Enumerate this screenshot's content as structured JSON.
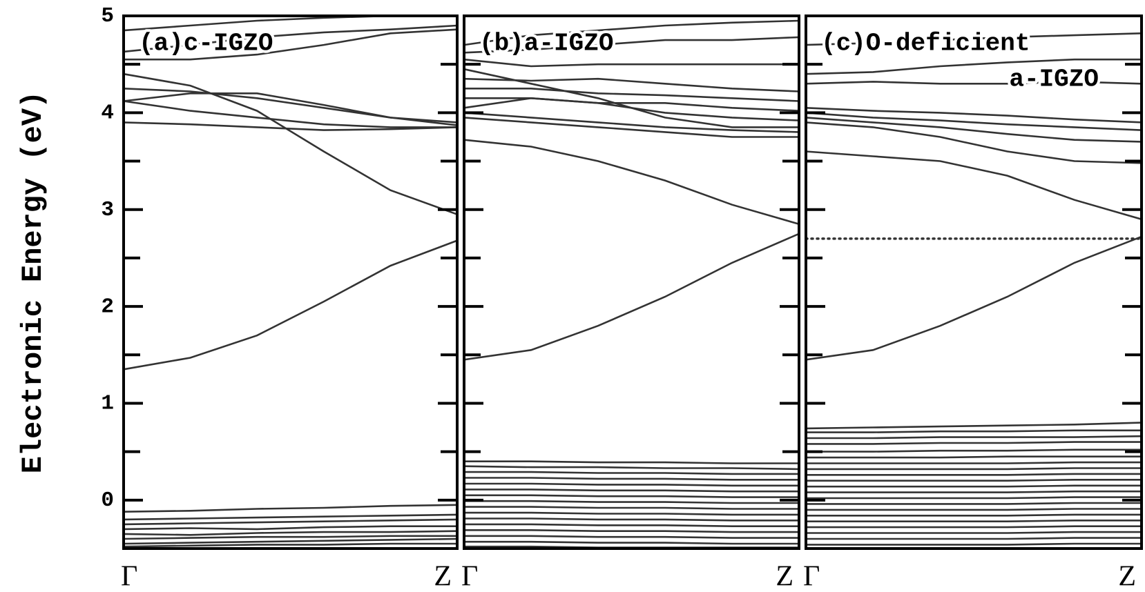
{
  "chart_data": [
    {
      "type": "line",
      "title": "(a)c-IGZO",
      "ylabel": "Electronic Energy (eV)",
      "categories": [
        "Γ",
        null,
        null,
        null,
        null,
        "Z"
      ],
      "ylim": [
        -0.5,
        5
      ],
      "yticks": [
        0,
        1,
        2,
        3,
        4,
        5
      ],
      "minor_yticks": [
        -0.5,
        0.5,
        1.5,
        2.5,
        3.5,
        4.5
      ],
      "color": "#333333",
      "series": [
        {
          "values": [
            1.35,
            1.47,
            1.7,
            2.05,
            2.42,
            2.68
          ]
        },
        {
          "values": [
            4.4,
            4.28,
            4.02,
            3.6,
            3.2,
            2.95
          ]
        },
        {
          "values": [
            4.12,
            4.2,
            4.2,
            4.08,
            3.95,
            3.87
          ]
        },
        {
          "values": [
            4.25,
            4.22,
            4.15,
            4.05,
            3.95,
            3.9
          ]
        },
        {
          "values": [
            4.12,
            4.02,
            3.95,
            3.88,
            3.85,
            3.85
          ]
        },
        {
          "values": [
            3.9,
            3.88,
            3.85,
            3.82,
            3.83,
            3.85
          ]
        },
        {
          "values": [
            4.55,
            4.55,
            4.6,
            4.7,
            4.82,
            4.86
          ]
        },
        {
          "values": [
            4.63,
            4.7,
            4.78,
            4.83,
            4.86,
            4.9
          ]
        },
        {
          "values": [
            4.85,
            4.9,
            4.95,
            4.98,
            5.0,
            5.0
          ]
        },
        {
          "values": [
            -0.12,
            -0.11,
            -0.09,
            -0.08,
            -0.06,
            -0.05
          ]
        },
        {
          "values": [
            -0.2,
            -0.19,
            -0.18,
            -0.17,
            -0.16,
            -0.15
          ]
        },
        {
          "values": [
            -0.25,
            -0.24,
            -0.23,
            -0.22,
            -0.21,
            -0.2
          ]
        },
        {
          "values": [
            -0.3,
            -0.29,
            -0.3,
            -0.28,
            -0.27,
            -0.27
          ]
        },
        {
          "values": [
            -0.35,
            -0.36,
            -0.34,
            -0.33,
            -0.33,
            -0.32
          ]
        },
        {
          "values": [
            -0.4,
            -0.39,
            -0.38,
            -0.38,
            -0.37,
            -0.37
          ]
        },
        {
          "values": [
            -0.45,
            -0.44,
            -0.43,
            -0.42,
            -0.41,
            -0.4
          ]
        },
        {
          "values": [
            -0.48,
            -0.47,
            -0.46,
            -0.46,
            -0.45,
            -0.45
          ]
        }
      ]
    },
    {
      "type": "line",
      "title": "(b)a-IGZO",
      "categories": [
        "Γ",
        null,
        null,
        null,
        null,
        "Z"
      ],
      "ylim": [
        -0.5,
        5
      ],
      "yticks": [
        0,
        1,
        2,
        3,
        4,
        5
      ],
      "minor_yticks": [
        -0.5,
        0.5,
        1.5,
        2.5,
        3.5,
        4.5
      ],
      "color": "#333333",
      "series": [
        {
          "values": [
            1.45,
            1.55,
            1.8,
            2.1,
            2.45,
            2.75
          ]
        },
        {
          "values": [
            3.72,
            3.65,
            3.5,
            3.3,
            3.05,
            2.85
          ]
        },
        {
          "values": [
            3.95,
            3.9,
            3.85,
            3.8,
            3.75,
            3.75
          ]
        },
        {
          "values": [
            4.0,
            3.95,
            3.9,
            3.85,
            3.82,
            3.8
          ]
        },
        {
          "values": [
            4.45,
            4.3,
            4.15,
            3.95,
            3.85,
            3.85
          ]
        },
        {
          "values": [
            4.05,
            4.15,
            4.1,
            4.0,
            3.95,
            3.92
          ]
        },
        {
          "values": [
            4.15,
            4.15,
            4.1,
            4.1,
            4.05,
            4.02
          ]
        },
        {
          "values": [
            4.25,
            4.25,
            4.2,
            4.18,
            4.15,
            4.12
          ]
        },
        {
          "values": [
            4.35,
            4.33,
            4.35,
            4.3,
            4.25,
            4.22
          ]
        },
        {
          "values": [
            4.55,
            4.48,
            4.5,
            4.5,
            4.5,
            4.5
          ]
        },
        {
          "values": [
            4.62,
            4.65,
            4.7,
            4.75,
            4.75,
            4.78
          ]
        },
        {
          "values": [
            4.7,
            4.8,
            4.85,
            4.9,
            4.93,
            4.95
          ]
        },
        {
          "values": [
            0.4,
            0.4,
            0.39,
            0.39,
            0.38,
            0.38
          ]
        },
        {
          "values": [
            0.35,
            0.34,
            0.34,
            0.33,
            0.33,
            0.32
          ]
        },
        {
          "values": [
            0.29,
            0.29,
            0.28,
            0.28,
            0.27,
            0.27
          ]
        },
        {
          "values": [
            0.23,
            0.23,
            0.22,
            0.22,
            0.21,
            0.21
          ]
        },
        {
          "values": [
            0.17,
            0.17,
            0.16,
            0.16,
            0.15,
            0.15
          ]
        },
        {
          "values": [
            0.11,
            0.11,
            0.1,
            0.1,
            0.09,
            0.09
          ]
        },
        {
          "values": [
            0.05,
            0.05,
            0.04,
            0.04,
            0.03,
            0.03
          ]
        },
        {
          "values": [
            -0.01,
            -0.01,
            -0.02,
            -0.02,
            -0.03,
            -0.03
          ]
        },
        {
          "values": [
            -0.07,
            -0.07,
            -0.08,
            -0.08,
            -0.09,
            -0.09
          ]
        },
        {
          "values": [
            -0.13,
            -0.13,
            -0.14,
            -0.14,
            -0.15,
            -0.15
          ]
        },
        {
          "values": [
            -0.19,
            -0.19,
            -0.2,
            -0.2,
            -0.21,
            -0.21
          ]
        },
        {
          "values": [
            -0.25,
            -0.25,
            -0.26,
            -0.26,
            -0.27,
            -0.27
          ]
        },
        {
          "values": [
            -0.31,
            -0.31,
            -0.32,
            -0.32,
            -0.33,
            -0.33
          ]
        },
        {
          "values": [
            -0.37,
            -0.37,
            -0.38,
            -0.38,
            -0.39,
            -0.39
          ]
        },
        {
          "values": [
            -0.43,
            -0.43,
            -0.44,
            -0.44,
            -0.45,
            -0.45
          ]
        },
        {
          "values": [
            -0.48,
            -0.48,
            -0.49,
            -0.49,
            -0.49,
            -0.49
          ]
        }
      ]
    },
    {
      "type": "line",
      "title": [
        "(c)O-deficient",
        "a-IGZO"
      ],
      "categories": [
        "Γ",
        null,
        null,
        null,
        null,
        "Z"
      ],
      "ylim": [
        -0.5,
        5
      ],
      "yticks": [
        0,
        1,
        2,
        3,
        4,
        5
      ],
      "minor_yticks": [
        -0.5,
        0.5,
        1.5,
        2.5,
        3.5,
        4.5
      ],
      "color": "#333333",
      "fermi_level": 2.7,
      "series": [
        {
          "values": [
            1.45,
            1.55,
            1.8,
            2.1,
            2.45,
            2.72
          ]
        },
        {
          "values": [
            3.6,
            3.55,
            3.5,
            3.35,
            3.1,
            2.9
          ]
        },
        {
          "values": [
            3.9,
            3.85,
            3.75,
            3.6,
            3.5,
            3.48
          ]
        },
        {
          "values": [
            3.95,
            3.9,
            3.85,
            3.78,
            3.72,
            3.7
          ]
        },
        {
          "values": [
            4.0,
            3.95,
            3.92,
            3.88,
            3.85,
            3.82
          ]
        },
        {
          "values": [
            4.05,
            4.02,
            4.0,
            3.97,
            3.93,
            3.9
          ]
        },
        {
          "values": [
            4.3,
            4.32,
            4.3,
            4.3,
            4.32,
            4.3
          ]
        },
        {
          "values": [
            4.4,
            4.42,
            4.48,
            4.52,
            4.55,
            4.55
          ]
        },
        {
          "values": [
            4.7,
            4.72,
            4.75,
            4.78,
            4.8,
            4.82
          ]
        },
        {
          "values": [
            0.74,
            0.75,
            0.76,
            0.77,
            0.78,
            0.8
          ]
        },
        {
          "values": [
            0.7,
            0.7,
            0.71,
            0.71,
            0.72,
            0.72
          ]
        },
        {
          "values": [
            0.64,
            0.64,
            0.65,
            0.65,
            0.65,
            0.66
          ]
        },
        {
          "values": [
            0.58,
            0.58,
            0.59,
            0.59,
            0.6,
            0.6
          ]
        },
        {
          "values": [
            0.5,
            0.5,
            0.51,
            0.51,
            0.52,
            0.52
          ]
        },
        {
          "values": [
            0.44,
            0.44,
            0.44,
            0.45,
            0.45,
            0.45
          ]
        },
        {
          "values": [
            0.38,
            0.38,
            0.38,
            0.38,
            0.39,
            0.39
          ]
        },
        {
          "values": [
            0.32,
            0.32,
            0.32,
            0.32,
            0.33,
            0.33
          ]
        },
        {
          "values": [
            0.26,
            0.26,
            0.26,
            0.26,
            0.27,
            0.27
          ]
        },
        {
          "values": [
            0.2,
            0.2,
            0.2,
            0.2,
            0.21,
            0.21
          ]
        },
        {
          "values": [
            0.14,
            0.14,
            0.14,
            0.14,
            0.15,
            0.15
          ]
        },
        {
          "values": [
            0.08,
            0.08,
            0.08,
            0.08,
            0.09,
            0.09
          ]
        },
        {
          "values": [
            0.02,
            0.02,
            0.02,
            0.02,
            0.03,
            0.03
          ]
        },
        {
          "values": [
            -0.04,
            -0.04,
            -0.04,
            -0.04,
            -0.03,
            -0.03
          ]
        },
        {
          "values": [
            -0.1,
            -0.1,
            -0.1,
            -0.1,
            -0.09,
            -0.09
          ]
        },
        {
          "values": [
            -0.16,
            -0.16,
            -0.16,
            -0.16,
            -0.15,
            -0.15
          ]
        },
        {
          "values": [
            -0.22,
            -0.22,
            -0.22,
            -0.22,
            -0.21,
            -0.21
          ]
        },
        {
          "values": [
            -0.28,
            -0.28,
            -0.28,
            -0.28,
            -0.27,
            -0.27
          ]
        },
        {
          "values": [
            -0.34,
            -0.34,
            -0.34,
            -0.34,
            -0.33,
            -0.33
          ]
        },
        {
          "values": [
            -0.4,
            -0.4,
            -0.4,
            -0.4,
            -0.39,
            -0.39
          ]
        },
        {
          "values": [
            -0.46,
            -0.46,
            -0.46,
            -0.46,
            -0.45,
            -0.45
          ]
        }
      ]
    }
  ]
}
